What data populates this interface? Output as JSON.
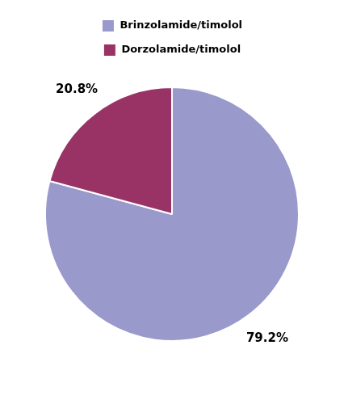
{
  "chart_data": {
    "type": "pie",
    "categories": [
      "Brinzolamide/timolol",
      "Dorzolamide/timolol"
    ],
    "values": [
      79.2,
      20.8
    ],
    "value_labels": [
      "79.2%",
      "20.8%"
    ],
    "colors": [
      "#9999cc",
      "#993366"
    ],
    "data_labels": true,
    "legend": "top"
  }
}
